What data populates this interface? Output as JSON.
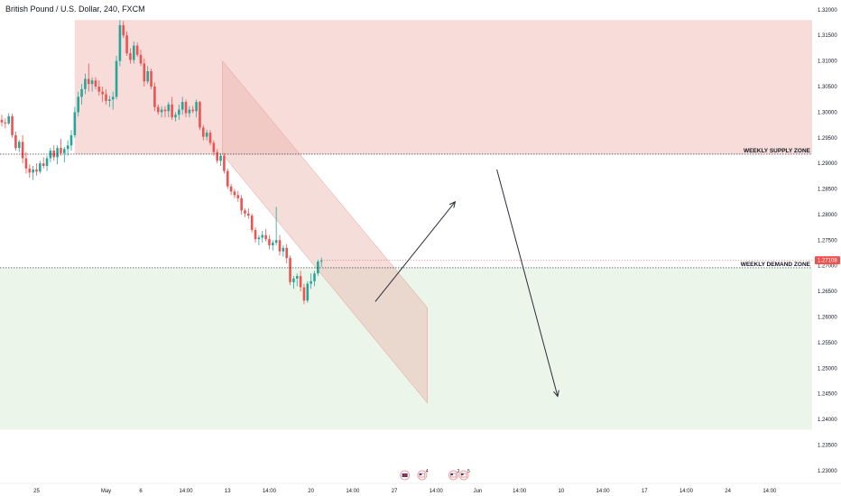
{
  "chart_data": {
    "type": "candlestick",
    "title": "British Pound / U.S. Dollar, 240, FXCM",
    "symbol": "GBPUSD",
    "ylim": [
      1.2275,
      1.3205
    ],
    "y_ticks": [
      "1.32000",
      "1.31500",
      "1.31000",
      "1.30500",
      "1.30000",
      "1.29500",
      "1.29000",
      "1.28500",
      "1.28000",
      "1.27500",
      "1.27000",
      "1.26500",
      "1.26000",
      "1.25500",
      "1.25000",
      "1.24500",
      "1.24000",
      "1.23500",
      "1.23000"
    ],
    "x_ticks": [
      {
        "label": "25",
        "bar": 10
      },
      {
        "label": "May",
        "bar": 30
      },
      {
        "label": "6",
        "bar": 40
      },
      {
        "label": "14:00",
        "bar": 53
      },
      {
        "label": "13",
        "bar": 65
      },
      {
        "label": "14:00",
        "bar": 77
      },
      {
        "label": "20",
        "bar": 89
      },
      {
        "label": "14:00",
        "bar": 101
      },
      {
        "label": "27",
        "bar": 113
      },
      {
        "label": "14:00",
        "bar": 125
      },
      {
        "label": "Jun",
        "bar": 137
      },
      {
        "label": "14:00",
        "bar": 149
      },
      {
        "label": "10",
        "bar": 161
      },
      {
        "label": "14:00",
        "bar": 173
      },
      {
        "label": "17",
        "bar": 185
      },
      {
        "label": "14:00",
        "bar": 197
      },
      {
        "label": "24",
        "bar": 209
      },
      {
        "label": "14:00",
        "bar": 221
      }
    ],
    "current_price": "1.27108",
    "current_value": 1.27108,
    "zones": [
      {
        "label": "WEEKLY SUPPLY ZONE",
        "top": 1.318,
        "bottom": 1.2918,
        "start_bar": 21,
        "color": "#f4d0cd",
        "line": 1.2918
      },
      {
        "label": "WEEKLY DEMAND ZONE",
        "top": 1.2695,
        "bottom": 1.238,
        "start_bar": 0,
        "color": "#e6f2e1",
        "line": 1.2696
      }
    ],
    "channel": {
      "color": "#e9b3ae",
      "points": [
        [
          63.5,
          1.31
        ],
        [
          122.5,
          1.2618
        ],
        [
          122.5,
          1.2432
        ],
        [
          63.5,
          1.2918
        ]
      ]
    },
    "arrows": [
      {
        "from": [
          107.5,
          1.263
        ],
        "to": [
          130.5,
          1.2825
        ]
      },
      {
        "from": [
          142.5,
          1.2888
        ],
        "to": [
          160,
          1.2445
        ]
      }
    ],
    "events": [
      {
        "icon": "uk-flag-icon",
        "label": "",
        "bar": 116
      },
      {
        "icon": "us-flag-icon",
        "label": "4",
        "bar": 121
      },
      {
        "icon": "us-flag-icon",
        "label": "3",
        "bar": 130
      },
      {
        "icon": "us-flag-icon",
        "label": "5",
        "bar": 133
      }
    ],
    "candles": [
      [
        1.2985,
        1.2995,
        1.2972,
        1.298
      ],
      [
        1.298,
        1.2988,
        1.2968,
        1.2978
      ],
      [
        1.2978,
        1.2998,
        1.2975,
        1.2992
      ],
      [
        1.2992,
        1.2997,
        1.295,
        1.2955
      ],
      [
        1.2955,
        1.2962,
        1.2925,
        1.293
      ],
      [
        1.293,
        1.2946,
        1.2922,
        1.2942
      ],
      [
        1.2942,
        1.2955,
        1.29,
        1.291
      ],
      [
        1.291,
        1.2922,
        1.288,
        1.289
      ],
      [
        1.289,
        1.2898,
        1.2872,
        1.2882
      ],
      [
        1.2882,
        1.2895,
        1.2868,
        1.2888
      ],
      [
        1.2888,
        1.29,
        1.2876,
        1.2884
      ],
      [
        1.2884,
        1.2905,
        1.288,
        1.29
      ],
      [
        1.29,
        1.2912,
        1.289,
        1.2895
      ],
      [
        1.2895,
        1.2915,
        1.2885,
        1.291
      ],
      [
        1.291,
        1.293,
        1.2902,
        1.2925
      ],
      [
        1.2925,
        1.2935,
        1.2905,
        1.2912
      ],
      [
        1.2912,
        1.2935,
        1.2898,
        1.293
      ],
      [
        1.293,
        1.2948,
        1.2915,
        1.292
      ],
      [
        1.292,
        1.2932,
        1.2902,
        1.2928
      ],
      [
        1.2928,
        1.2945,
        1.2915,
        1.2935
      ],
      [
        1.2935,
        1.2965,
        1.2925,
        1.2955
      ],
      [
        1.2955,
        1.301,
        1.295,
        1.3
      ],
      [
        1.3,
        1.304,
        1.2992,
        1.303
      ],
      [
        1.303,
        1.3055,
        1.3015,
        1.3045
      ],
      [
        1.3045,
        1.3075,
        1.3035,
        1.3065
      ],
      [
        1.3065,
        1.3095,
        1.304,
        1.3055
      ],
      [
        1.3055,
        1.3068,
        1.304,
        1.3062
      ],
      [
        1.3062,
        1.3068,
        1.3045,
        1.305
      ],
      [
        1.305,
        1.3062,
        1.3032,
        1.304
      ],
      [
        1.304,
        1.305,
        1.302,
        1.3035
      ],
      [
        1.3035,
        1.3045,
        1.3015,
        1.3022
      ],
      [
        1.3022,
        1.3032,
        1.301,
        1.3025
      ],
      [
        1.3025,
        1.304,
        1.3005,
        1.303
      ],
      [
        1.303,
        1.311,
        1.3025,
        1.31
      ],
      [
        1.31,
        1.318,
        1.309,
        1.317
      ],
      [
        1.317,
        1.3178,
        1.3145,
        1.315
      ],
      [
        1.315,
        1.3158,
        1.311,
        1.3115
      ],
      [
        1.3115,
        1.3125,
        1.3095,
        1.3102
      ],
      [
        1.3102,
        1.3138,
        1.3095,
        1.313
      ],
      [
        1.313,
        1.3136,
        1.3108,
        1.3112
      ],
      [
        1.3112,
        1.3122,
        1.309,
        1.3095
      ],
      [
        1.3095,
        1.3105,
        1.305,
        1.306
      ],
      [
        1.306,
        1.309,
        1.3055,
        1.308
      ],
      [
        1.308,
        1.3085,
        1.3045,
        1.305
      ],
      [
        1.305,
        1.3058,
        1.3002,
        1.301
      ],
      [
        1.301,
        1.3015,
        1.2995,
        1.3
      ],
      [
        1.3,
        1.3012,
        1.299,
        1.3005
      ],
      [
        1.3005,
        1.3012,
        1.299,
        1.3002
      ],
      [
        1.3002,
        1.302,
        1.299,
        1.3015
      ],
      [
        1.3015,
        1.303,
        1.2985,
        1.299
      ],
      [
        1.299,
        1.3,
        1.2982,
        1.2995
      ],
      [
        1.2995,
        1.3015,
        1.2985,
        1.3005
      ],
      [
        1.3005,
        1.303,
        1.2995,
        1.302
      ],
      [
        1.302,
        1.3025,
        1.299,
        1.2998
      ],
      [
        1.2998,
        1.3012,
        1.299,
        1.3005
      ],
      [
        1.3005,
        1.3012,
        1.2998,
        1.3002
      ],
      [
        1.3002,
        1.3025,
        1.299,
        1.302
      ],
      [
        1.302,
        1.3022,
        1.2965,
        1.297
      ],
      [
        1.297,
        1.2975,
        1.2945,
        1.2952
      ],
      [
        1.2952,
        1.2966,
        1.2945,
        1.296
      ],
      [
        1.296,
        1.2965,
        1.2935,
        1.294
      ],
      [
        1.294,
        1.2945,
        1.2915,
        1.2922
      ],
      [
        1.2922,
        1.2928,
        1.29,
        1.2905
      ],
      [
        1.2905,
        1.292,
        1.2895,
        1.2915
      ],
      [
        1.2915,
        1.292,
        1.288,
        1.2885
      ],
      [
        1.2885,
        1.289,
        1.285,
        1.2855
      ],
      [
        1.2855,
        1.286,
        1.2838,
        1.2845
      ],
      [
        1.2845,
        1.285,
        1.2832,
        1.2838
      ],
      [
        1.2838,
        1.2846,
        1.2825,
        1.2832
      ],
      [
        1.2832,
        1.2838,
        1.28,
        1.2808
      ],
      [
        1.2808,
        1.2812,
        1.2795,
        1.2802
      ],
      [
        1.2802,
        1.2812,
        1.2792,
        1.2798
      ],
      [
        1.2798,
        1.2802,
        1.2765,
        1.277
      ],
      [
        1.277,
        1.2775,
        1.2745,
        1.2752
      ],
      [
        1.2752,
        1.276,
        1.274,
        1.2755
      ],
      [
        1.2755,
        1.2768,
        1.2745,
        1.276
      ],
      [
        1.276,
        1.2772,
        1.2748,
        1.2752
      ],
      [
        1.2752,
        1.276,
        1.2732,
        1.274
      ],
      [
        1.274,
        1.275,
        1.273,
        1.2745
      ],
      [
        1.2745,
        1.2815,
        1.274,
        1.275
      ],
      [
        1.275,
        1.276,
        1.272,
        1.2728
      ],
      [
        1.2728,
        1.274,
        1.2718,
        1.2735
      ],
      [
        1.2735,
        1.2742,
        1.2705,
        1.2715
      ],
      [
        1.2715,
        1.272,
        1.2662,
        1.2668
      ],
      [
        1.2668,
        1.268,
        1.2655,
        1.2675
      ],
      [
        1.2675,
        1.2685,
        1.266,
        1.268
      ],
      [
        1.268,
        1.269,
        1.265,
        1.2658
      ],
      [
        1.2658,
        1.2665,
        1.2625,
        1.2632
      ],
      [
        1.2632,
        1.267,
        1.2628,
        1.2665
      ],
      [
        1.2665,
        1.2685,
        1.2655,
        1.267
      ],
      [
        1.267,
        1.269,
        1.266,
        1.2685
      ],
      [
        1.2685,
        1.2712,
        1.268,
        1.2708
      ],
      [
        1.2708,
        1.2716,
        1.2698,
        1.271
      ]
    ]
  }
}
